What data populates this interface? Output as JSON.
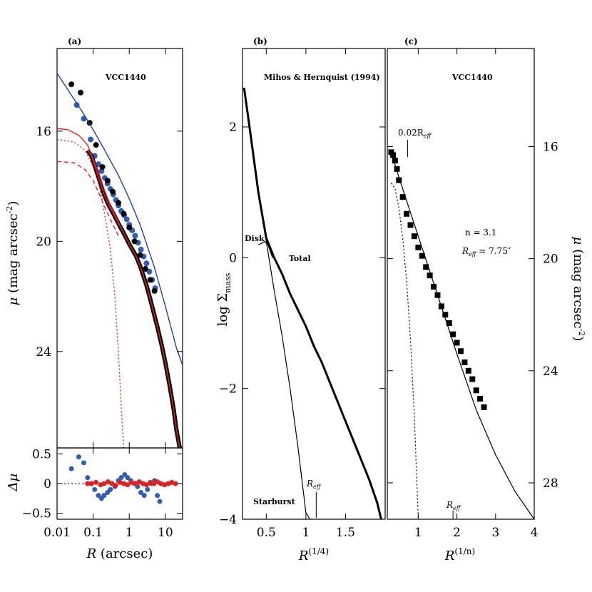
{
  "chart_data": [
    {
      "panel": "(a)",
      "type": "line",
      "title": "VCC1440",
      "xlabel_var": "R",
      "xlabel_unit": "(arcsec)",
      "ylabel_var": "μ",
      "ylabel_unit": "(mag arcsec",
      "ylabel_exp": "-2",
      "ylabel_close": ")",
      "xscale": "log",
      "xlim": [
        0.01,
        30
      ],
      "ylim": [
        27.5,
        13.0
      ],
      "xticks": [
        0.01,
        0.1,
        1,
        10
      ],
      "xtick_labels": [
        "0.01",
        "0.1",
        "1",
        "10"
      ],
      "yticks": [
        16,
        20,
        24
      ],
      "ytick_labels": [
        "16",
        "20",
        "24"
      ],
      "series": [
        {
          "name": "blue points",
          "color": "#2e5cb8",
          "style": "scatter",
          "x": [
            0.035,
            0.055,
            0.085,
            0.11,
            0.14,
            0.17,
            0.21,
            0.25,
            0.3,
            0.36,
            0.43,
            0.5,
            0.6,
            0.72,
            0.85,
            1.0,
            1.2,
            1.45,
            1.75,
            2.1,
            2.5,
            3.0,
            3.6,
            4.3,
            5.2
          ],
          "y": [
            15.05,
            15.55,
            16.3,
            16.9,
            17.2,
            17.45,
            17.7,
            17.9,
            18.1,
            18.3,
            18.5,
            18.7,
            18.9,
            19.05,
            19.2,
            19.4,
            19.6,
            19.8,
            20.05,
            20.3,
            20.55,
            20.8,
            21.1,
            21.4,
            21.7
          ]
        },
        {
          "name": "black points",
          "color": "#000000",
          "style": "scatter",
          "x": [
            0.025,
            0.045,
            0.08,
            0.12,
            0.18,
            0.25,
            0.35,
            0.5,
            0.7,
            1.0,
            1.4,
            2.0,
            2.8,
            3.8,
            5.0
          ],
          "y": [
            14.3,
            14.6,
            15.7,
            16.5,
            17.3,
            17.8,
            18.2,
            18.6,
            19.0,
            19.5,
            20.0,
            20.5,
            21.0,
            21.4,
            21.8
          ]
        },
        {
          "name": "blue model",
          "color": "#1f3fb0",
          "style": "line",
          "x": [
            0.01,
            0.02,
            0.05,
            0.1,
            0.2,
            0.5,
            1,
            2,
            5,
            10,
            20,
            30
          ],
          "y": [
            13.9,
            14.5,
            15.3,
            15.95,
            16.65,
            17.6,
            18.45,
            19.4,
            20.95,
            22.35,
            23.85,
            24.5
          ]
        },
        {
          "name": "black profile",
          "color": "#000000",
          "style": "thick",
          "x": [
            0.07,
            0.09,
            0.12,
            0.16,
            0.2,
            0.25,
            0.3,
            0.4,
            0.5,
            0.7,
            1.0,
            1.5,
            2.0,
            3.0,
            4.0,
            5.0,
            6.0,
            8.0,
            10,
            13,
            17,
            20,
            25
          ],
          "y": [
            16.7,
            16.9,
            17.4,
            17.9,
            18.3,
            18.6,
            18.8,
            19.1,
            19.35,
            19.7,
            20.1,
            20.5,
            20.9,
            21.6,
            22.2,
            22.7,
            23.1,
            23.8,
            24.4,
            25.2,
            26.1,
            26.8,
            27.5
          ]
        },
        {
          "name": "red total model",
          "color": "#e02020",
          "style": "line",
          "x": [
            0.01,
            0.02,
            0.04,
            0.07,
            0.1,
            0.15,
            0.2,
            0.3,
            0.5,
            0.7,
            1.0,
            1.5,
            2.0,
            3.0,
            4.0,
            5.0,
            6.0,
            8.0,
            10,
            13,
            17,
            20,
            25
          ],
          "y": [
            15.9,
            15.95,
            16.15,
            16.5,
            17.0,
            17.6,
            18.1,
            18.7,
            19.3,
            19.7,
            20.1,
            20.5,
            20.9,
            21.6,
            22.2,
            22.7,
            23.1,
            23.8,
            24.4,
            25.2,
            26.1,
            26.8,
            27.5
          ]
        },
        {
          "name": "red dotted component",
          "color": "#e02020",
          "style": "dotted",
          "x": [
            0.01,
            0.03,
            0.06,
            0.1,
            0.15,
            0.2,
            0.3,
            0.4,
            0.5,
            0.6,
            0.7
          ],
          "y": [
            16.3,
            16.4,
            16.7,
            17.3,
            18.0,
            18.9,
            20.3,
            22.0,
            24.0,
            26.0,
            27.5
          ]
        },
        {
          "name": "red dashed component",
          "color": "#e02020",
          "style": "dashed",
          "x": [
            0.01,
            0.03,
            0.06,
            0.1,
            0.15,
            0.2,
            0.3,
            0.5
          ],
          "y": [
            17.1,
            17.15,
            17.4,
            17.8,
            18.3,
            18.7,
            19.2,
            19.8
          ]
        }
      ]
    },
    {
      "panel": "residuals (a)",
      "type": "scatter",
      "ylabel": "Δμ",
      "ylim": [
        -0.6,
        0.6
      ],
      "yticks": [
        0.5,
        0,
        -0.5
      ],
      "ytick_labels": [
        "0.5",
        "0",
        "−0.5"
      ],
      "series": [
        {
          "name": "blue residuals",
          "color": "#2e5cb8",
          "x": [
            0.025,
            0.04,
            0.055,
            0.07,
            0.09,
            0.11,
            0.14,
            0.17,
            0.2,
            0.25,
            0.3,
            0.4,
            0.5,
            0.6,
            0.75,
            0.9,
            1.1,
            1.4,
            1.7,
            2.1,
            2.6,
            3.2,
            4.0,
            5.0,
            6.0,
            7.0
          ],
          "y": [
            0.25,
            0.45,
            0.35,
            0.1,
            0.0,
            -0.1,
            -0.2,
            -0.25,
            -0.2,
            -0.15,
            -0.1,
            -0.05,
            0.05,
            0.1,
            0.15,
            0.1,
            0.05,
            0.0,
            -0.05,
            -0.15,
            -0.2,
            -0.1,
            0.0,
            0.05,
            -0.2,
            -0.3
          ]
        },
        {
          "name": "red residuals",
          "color": "#e02020",
          "x": [
            0.07,
            0.09,
            0.12,
            0.16,
            0.2,
            0.26,
            0.33,
            0.42,
            0.55,
            0.7,
            0.9,
            1.15,
            1.5,
            1.9,
            2.4,
            3.0,
            3.8,
            4.8,
            6.0,
            7.5,
            9.5,
            12,
            15,
            19
          ],
          "y": [
            0.0,
            0.0,
            0.02,
            -0.02,
            0.0,
            0.03,
            0.0,
            -0.03,
            0.02,
            0.0,
            -0.02,
            0.02,
            0.0,
            0.03,
            0.0,
            -0.02,
            0.02,
            0.0,
            0.03,
            0.0,
            -0.02,
            0.0,
            0.02,
            0.0
          ]
        }
      ]
    },
    {
      "panel": "(b)",
      "type": "line",
      "title": "Mihos & Hernquist (1994)",
      "xlabel_var": "R",
      "xlabel_exp": "(1/4)",
      "ylabel_pre": "log Σ",
      "ylabel_sub": "mass",
      "xlim": [
        0.2,
        2.0
      ],
      "ylim": [
        -4,
        3.2
      ],
      "xticks": [
        0.5,
        1.0,
        1.5
      ],
      "xtick_labels": [
        "0.5",
        "1",
        "1.5"
      ],
      "yticks": [
        2,
        0,
        -2,
        -4
      ],
      "ytick_labels": [
        "2",
        "0",
        "−2",
        "−4"
      ],
      "annotations": {
        "disk": "Disk",
        "total": "Total",
        "starburst": "Starburst",
        "reff_var": "R",
        "reff_sub": "eff"
      },
      "reff_x": 1.13,
      "series": [
        {
          "name": "Total",
          "x": [
            0.22,
            0.3,
            0.4,
            0.5,
            0.55,
            0.6,
            0.7,
            0.8,
            0.9,
            1.0,
            1.1,
            1.2,
            1.3,
            1.4,
            1.5,
            1.6,
            1.7,
            1.8,
            1.9,
            1.95
          ],
          "y": [
            2.6,
            1.9,
            1.0,
            0.3,
            0.15,
            0.0,
            -0.25,
            -0.55,
            -0.8,
            -1.05,
            -1.35,
            -1.6,
            -1.9,
            -2.2,
            -2.5,
            -2.8,
            -3.1,
            -3.4,
            -3.75,
            -4.0
          ]
        },
        {
          "name": "Starburst",
          "x": [
            0.22,
            0.3,
            0.4,
            0.5,
            0.6,
            0.7,
            0.8,
            0.9,
            0.95,
            1.0,
            1.05
          ],
          "y": [
            2.6,
            1.9,
            1.0,
            0.25,
            -0.5,
            -1.2,
            -2.0,
            -2.9,
            -3.4,
            -3.9,
            -4.0
          ]
        },
        {
          "name": "Disk",
          "x": [
            0.4,
            0.44,
            0.48,
            0.52,
            0.55,
            0.58
          ],
          "y": [
            0.2,
            0.22,
            0.25,
            0.2,
            0.1,
            0.0
          ]
        }
      ]
    },
    {
      "panel": "(c)",
      "type": "line",
      "title": "VCC1440",
      "xlabel_var": "R",
      "xlabel_exp": "(1/n)",
      "ylabel_var": "μ",
      "ylabel_unit": "(mag arcsec",
      "ylabel_exp": "-2",
      "ylabel_close": ")",
      "xlim": [
        0.2,
        4.0
      ],
      "ylim": [
        29.3,
        12.5
      ],
      "xticks": [
        1,
        2,
        3,
        4
      ],
      "xtick_labels": [
        "1",
        "2",
        "3",
        "4"
      ],
      "yticks": [
        16,
        20,
        24,
        28
      ],
      "ytick_labels": [
        "16",
        "20",
        "24",
        "28"
      ],
      "annotations": {
        "inner_var": "0.02R",
        "inner_sub": "eff",
        "n_label": "n  =  3.1",
        "reff_label_var": "R",
        "reff_label_sub": "eff",
        "reff_label_value": " =  7.75″",
        "reff_var": "R",
        "reff_sub": "eff"
      },
      "reff_x": 1.9,
      "inner_x": 0.45,
      "series": [
        {
          "name": "data points",
          "x": [
            0.3,
            0.35,
            0.4,
            0.45,
            0.5,
            0.6,
            0.7,
            0.8,
            0.9,
            1.0,
            1.1,
            1.2,
            1.3,
            1.4,
            1.5,
            1.6,
            1.7,
            1.8,
            1.9,
            2.0,
            2.1,
            2.2,
            2.3,
            2.4,
            2.5,
            2.6,
            2.7
          ],
          "y": [
            16.2,
            16.3,
            16.5,
            16.8,
            17.2,
            17.8,
            18.4,
            18.8,
            19.2,
            19.6,
            19.9,
            20.3,
            20.6,
            21.0,
            21.3,
            21.7,
            22.0,
            22.3,
            22.7,
            23.0,
            23.3,
            23.7,
            24.0,
            24.3,
            24.7,
            25.0,
            25.3
          ]
        },
        {
          "name": "Sersic fit",
          "x": [
            0.3,
            0.5,
            1.0,
            1.5,
            2.0,
            2.5,
            3.0,
            3.5,
            4.0
          ],
          "y": [
            16.2,
            17.1,
            19.2,
            21.3,
            23.4,
            25.4,
            27.0,
            28.3,
            29.3
          ]
        },
        {
          "name": "inner component",
          "x": [
            0.3,
            0.4,
            0.5,
            0.6,
            0.7,
            0.8,
            0.9,
            1.0
          ],
          "y": [
            17.3,
            17.5,
            18.2,
            19.3,
            20.8,
            22.9,
            25.6,
            29.3
          ]
        }
      ]
    }
  ]
}
